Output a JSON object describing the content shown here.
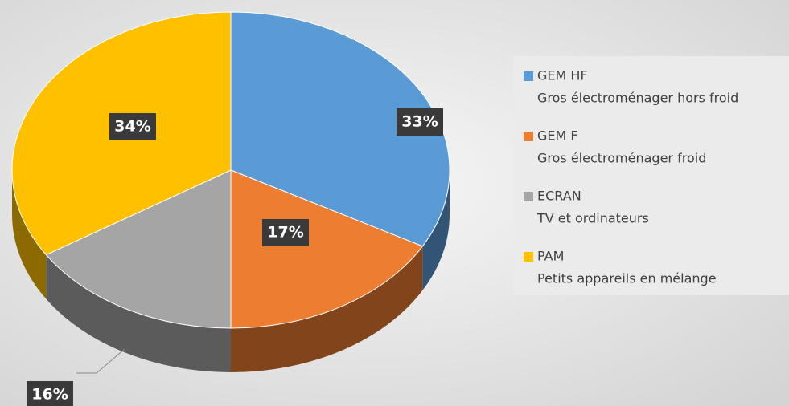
{
  "chart_data": {
    "type": "pie",
    "categories": [
      "GEM HF",
      "GEM F",
      "ECRAN",
      "PAM"
    ],
    "descriptions": [
      "Gros électroménager hors froid",
      "Gros électroménager froid",
      "TV et ordinateurs",
      "Petits appareils en mélange"
    ],
    "values": [
      33,
      17,
      16,
      34
    ],
    "value_labels": [
      "33%",
      "17%",
      "16%",
      "34%"
    ],
    "colors": [
      "#5b9bd5",
      "#ed7d31",
      "#a5a5a5",
      "#ffc000"
    ],
    "legend": "right"
  }
}
